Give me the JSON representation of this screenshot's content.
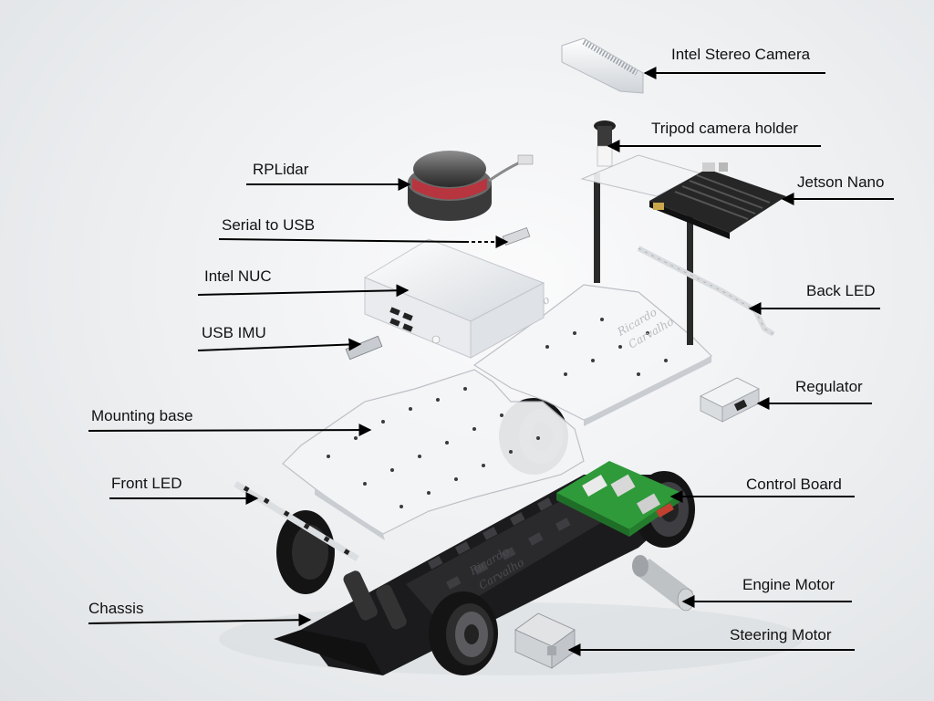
{
  "labels": {
    "intel_stereo_camera": "Intel Stereo Camera",
    "tripod_camera_holder": "Tripod camera holder",
    "rplidar": "RPLidar",
    "jetson_nano": "Jetson Nano",
    "serial_to_usb": "Serial to USB",
    "intel_nuc": "Intel NUC",
    "back_led": "Back LED",
    "usb_imu": "USB IMU",
    "regulator": "Regulator",
    "mounting_base": "Mounting base",
    "front_led": "Front LED",
    "control_board": "Control Board",
    "engine_motor": "Engine Motor",
    "chassis": "Chassis",
    "steering_motor": "Steering Motor"
  },
  "watermark": {
    "line1": "Ricardo",
    "line2": "Carvalho"
  },
  "colors": {
    "background": "#eceef0",
    "label_text": "#111111",
    "leader_line": "#000000",
    "control_board_green": "#2f9a3a",
    "chassis_black": "#1b1b1d",
    "acrylic": "#f3f5f7",
    "lidar_red": "#c0303a"
  }
}
